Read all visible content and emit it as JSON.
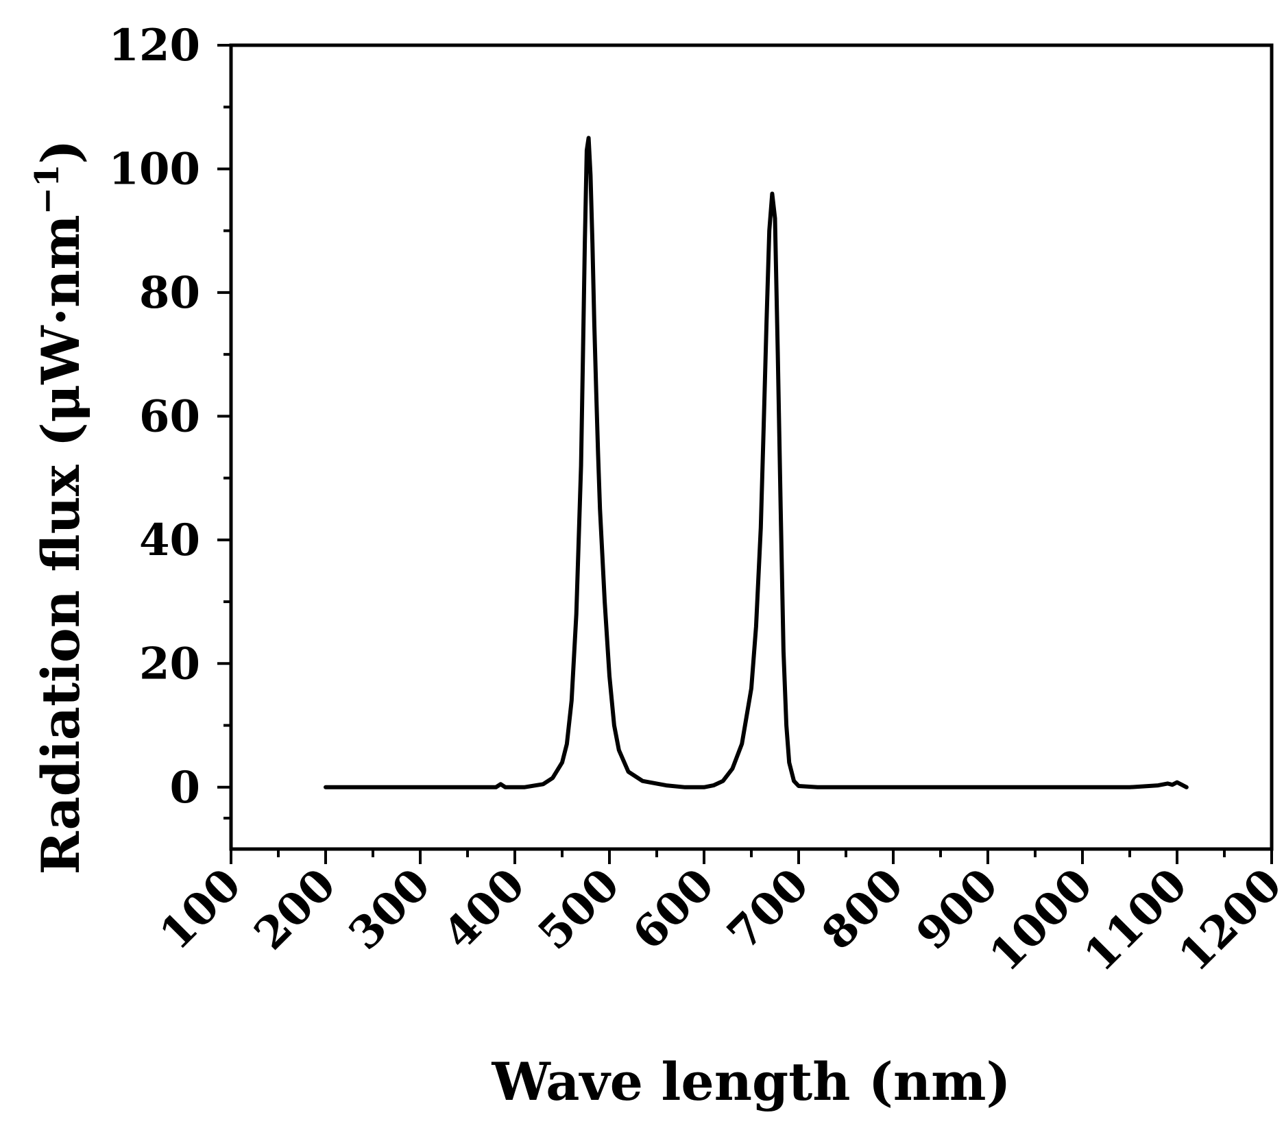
{
  "chart_data": {
    "type": "line",
    "title": "",
    "xlabel": "Wave length (nm)",
    "ylabel": {
      "main": "Radiation flux (μW·nm",
      "sup": "−1",
      "close": ")"
    },
    "xlim": [
      100,
      1200
    ],
    "ylim": [
      -10,
      120
    ],
    "xticks": [
      100,
      200,
      300,
      400,
      500,
      600,
      700,
      800,
      900,
      1000,
      1100,
      1200
    ],
    "yticks": [
      0,
      20,
      40,
      60,
      80,
      100,
      120
    ],
    "series": [
      {
        "name": "Radiation flux",
        "x": [
          200,
          300,
          380,
          385,
          390,
          410,
          430,
          440,
          450,
          455,
          460,
          465,
          470,
          472,
          474,
          476,
          478,
          480,
          482,
          484,
          486,
          488,
          490,
          495,
          500,
          505,
          510,
          520,
          535,
          560,
          580,
          600,
          610,
          620,
          630,
          640,
          650,
          655,
          660,
          663,
          666,
          669,
          672,
          675,
          678,
          681,
          684,
          687,
          690,
          695,
          700,
          720,
          800,
          900,
          1000,
          1050,
          1080,
          1090,
          1095,
          1100,
          1105,
          1110
        ],
        "y": [
          0,
          0,
          0,
          0.5,
          0,
          0,
          0.5,
          1.5,
          4,
          7,
          14,
          28,
          52,
          70,
          88,
          103,
          105,
          99,
          88,
          75,
          64,
          54,
          45,
          30,
          18,
          10,
          6,
          2.5,
          1,
          0.3,
          0,
          0,
          0.3,
          1,
          3,
          7,
          16,
          26,
          42,
          58,
          75,
          90,
          96,
          92,
          70,
          45,
          22,
          10,
          4,
          1,
          0.2,
          0,
          0,
          0,
          0,
          0,
          0.3,
          0.6,
          0.4,
          0.8,
          0.4,
          0
        ]
      }
    ]
  }
}
